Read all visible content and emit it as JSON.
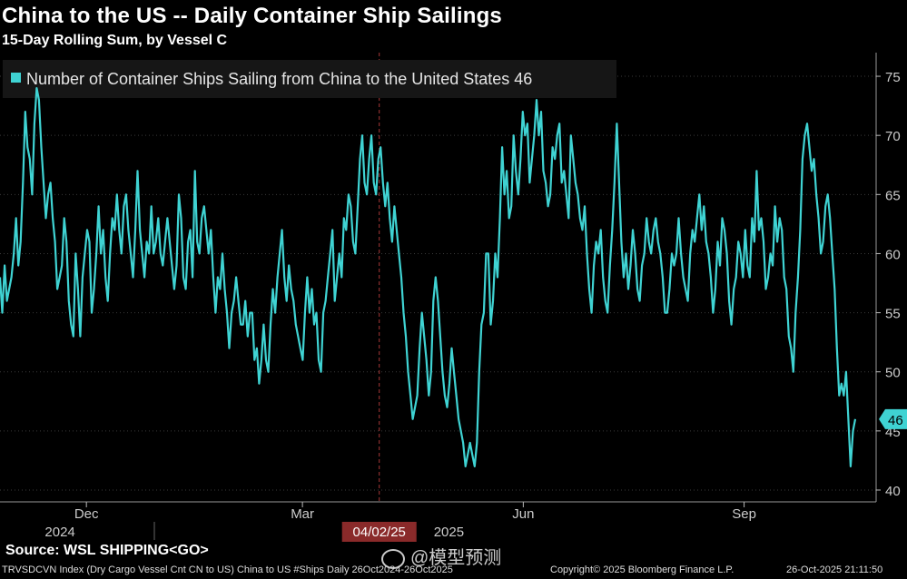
{
  "header": {
    "title": "China to the US -- Daily Container Ship Sailings",
    "subtitle": "15-Day Rolling Sum, by Vessel C"
  },
  "footer": {
    "source": "Source: WSL SHIPPING<GO>",
    "meta": "TRVSDCVN Index (Dry Cargo Vessel Cnt CN to US) China to US #Ships Daily 26Oct2024-26Oct2025",
    "copyright": "Copyright© 2025 Bloomberg Finance L.P.",
    "date": "26-Oct-2025 21:11:50",
    "watermark": "@模型预测"
  },
  "colors": {
    "background": "#000000",
    "line": "#3fd3d3",
    "marker": "#a83838",
    "grid": "#3a3a3a"
  },
  "chart_data": {
    "type": "line",
    "title": "China to the US -- Daily Container Ship Sailings",
    "subtitle": "15-Day Rolling Sum, by Vessel C",
    "legend": "Number of Container Ships Sailing from China to the United States 46",
    "legend_position": "top-left",
    "last_value_label": "46",
    "ylim": [
      39,
      77
    ],
    "y_ticks": [
      40,
      45,
      50,
      55,
      60,
      65,
      70,
      75
    ],
    "x_start": "2024-10-26",
    "x_end": "2025-10-26",
    "month_labels": [
      {
        "label": "Dec",
        "date": "2024-12-01"
      },
      {
        "label": "Mar",
        "date": "2025-03-01"
      },
      {
        "label": "Jun",
        "date": "2025-06-01"
      },
      {
        "label": "Sep",
        "date": "2025-09-01"
      }
    ],
    "year_labels": [
      {
        "label": "2024",
        "date": "2024-11-20"
      },
      {
        "label": "2025",
        "date": "2025-05-01"
      }
    ],
    "marker": {
      "label": "04/02/25",
      "date": "2025-04-02"
    },
    "series": [
      {
        "name": "Number of Container Ships Sailing from China to the United States",
        "values": [
          58,
          55,
          59,
          56,
          57,
          58,
          60,
          63,
          59,
          61,
          66,
          72,
          69,
          68,
          65,
          71,
          74,
          73,
          69,
          66,
          63,
          65,
          66,
          63,
          61,
          57,
          58,
          59,
          63,
          61,
          56,
          54,
          53,
          60,
          57,
          53,
          58,
          60,
          62,
          61,
          55,
          57,
          60,
          64,
          60,
          62,
          58,
          56,
          60,
          63,
          62,
          65,
          62,
          60,
          64,
          65,
          62,
          60,
          58,
          62,
          67,
          62,
          60,
          58,
          61,
          60,
          64,
          60,
          61,
          63,
          60,
          59,
          61,
          63,
          61,
          59,
          57,
          59,
          65,
          63,
          58,
          57,
          61,
          62,
          58,
          67,
          61,
          60,
          63,
          64,
          62,
          60,
          62,
          58,
          55,
          58,
          57,
          60,
          57,
          55,
          52,
          55,
          56,
          58,
          56,
          54,
          54,
          56,
          53,
          55,
          55,
          51,
          52,
          49,
          51,
          54,
          51,
          50,
          54,
          57,
          55,
          58,
          60,
          62,
          58,
          56,
          59,
          57,
          56,
          54,
          53,
          52,
          51,
          55,
          58,
          55,
          57,
          54,
          55,
          51,
          50,
          55,
          56,
          58,
          60,
          62,
          56,
          58,
          60,
          58,
          63,
          62,
          65,
          64,
          61,
          60,
          64,
          68,
          70,
          66,
          65,
          68,
          70,
          66,
          65,
          68,
          69,
          66,
          64,
          66,
          63,
          61,
          64,
          62,
          60,
          58,
          55,
          53,
          50,
          48,
          46,
          47,
          48,
          52,
          55,
          53,
          51,
          48,
          50,
          56,
          58,
          56,
          53,
          50,
          48,
          47,
          49,
          52,
          50,
          48,
          46,
          45,
          44,
          42,
          43,
          44,
          43,
          42,
          44,
          50,
          54,
          55,
          60,
          60,
          54,
          56,
          60,
          58,
          63,
          69,
          65,
          67,
          63,
          64,
          70,
          67,
          65,
          68,
          72,
          70,
          71,
          66,
          68,
          70,
          73,
          70,
          72,
          67,
          66,
          64,
          65,
          69,
          68,
          70,
          71,
          66,
          67,
          65,
          63,
          70,
          68,
          66,
          65,
          63,
          62,
          64,
          60,
          57,
          55,
          59,
          61,
          60,
          62,
          58,
          56,
          55,
          59,
          62,
          66,
          71,
          66,
          61,
          58,
          60,
          57,
          59,
          62,
          60,
          57,
          56,
          59,
          60,
          63,
          61,
          60,
          62,
          63,
          61,
          60,
          58,
          55,
          55,
          57,
          60,
          59,
          60,
          63,
          60,
          58,
          57,
          56,
          60,
          62,
          61,
          63,
          65,
          62,
          64,
          61,
          60,
          58,
          55,
          57,
          61,
          59,
          63,
          62,
          60,
          56,
          54,
          57,
          58,
          61,
          60,
          58,
          62,
          59,
          58,
          63,
          61,
          67,
          62,
          63,
          61,
          57,
          58,
          60,
          59,
          64,
          61,
          63,
          62,
          58,
          57,
          53,
          52,
          50,
          55,
          58,
          62,
          68,
          70,
          71,
          69,
          67,
          68,
          65,
          63,
          60,
          61,
          64,
          65,
          63,
          60,
          57,
          52,
          48,
          49,
          48,
          50,
          46,
          42,
          45,
          46
        ]
      }
    ]
  }
}
